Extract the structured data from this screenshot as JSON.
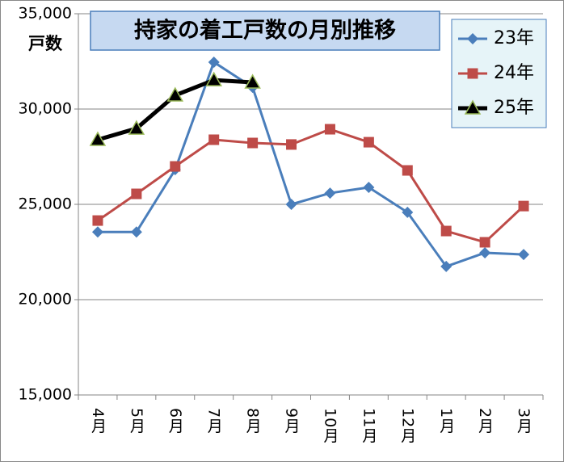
{
  "chart_data": {
    "type": "line",
    "title": "持家の着工戸数の月別推移",
    "y_label": "戸数",
    "categories": [
      "4月",
      "5月",
      "6月",
      "7月",
      "8月",
      "9月",
      "10月",
      "11月",
      "12月",
      "1月",
      "2月",
      "3月"
    ],
    "series": [
      {
        "name": "23年",
        "color": "#4a7ebb",
        "marker": "diamond",
        "values": [
          23550,
          23550,
          26820,
          32460,
          31140,
          25000,
          25590,
          25890,
          24580,
          21740,
          22460,
          22370
        ]
      },
      {
        "name": "24年",
        "color": "#be4b48",
        "marker": "square",
        "values": [
          24150,
          25550,
          26990,
          28390,
          28220,
          28140,
          28940,
          28260,
          26780,
          23600,
          23010,
          24910
        ]
      },
      {
        "name": "25年",
        "color": "#000000",
        "marker": "triangle",
        "values": [
          28390,
          28980,
          30720,
          31520,
          31400,
          null,
          null,
          null,
          null,
          null,
          null,
          null
        ]
      }
    ],
    "ylim": [
      15000,
      35000
    ],
    "yticks": [
      {
        "value": 15000,
        "label": "15,000"
      },
      {
        "value": 20000,
        "label": "20,000"
      },
      {
        "value": 25000,
        "label": "25,000"
      },
      {
        "value": 30000,
        "label": "30,000"
      },
      {
        "value": 35000,
        "label": "35,000"
      }
    ],
    "grid": true,
    "legend": "top-right"
  }
}
